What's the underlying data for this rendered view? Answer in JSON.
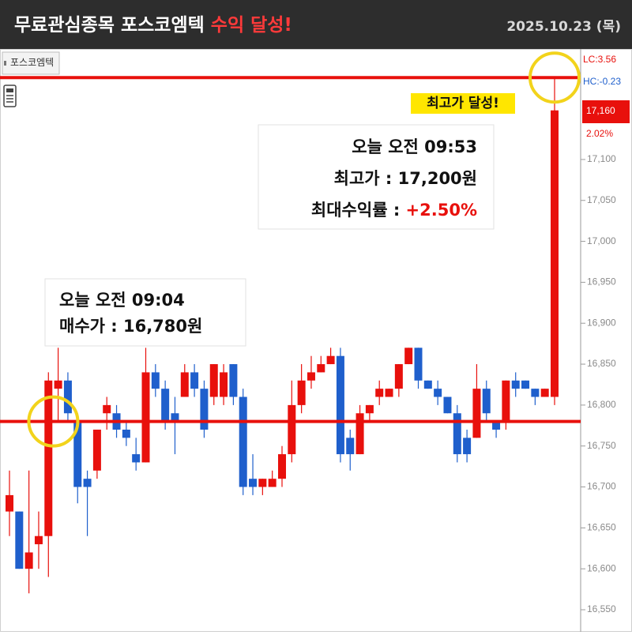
{
  "header": {
    "title": "무료관심종목 포스코엠텍",
    "title_highlight": "수익 달성!",
    "date": "2025.10.23 (목)"
  },
  "chart_data": {
    "type": "candlestick",
    "legend": "포스코엠텍",
    "open": [
      16670,
      16670,
      16600,
      16630,
      16640,
      16820,
      16830,
      16780,
      16710,
      16720,
      16790,
      16790,
      16770,
      16740,
      16730,
      16840,
      16820,
      16790,
      16810,
      16840,
      16820,
      16810,
      16810,
      16850,
      16810,
      16710,
      16700,
      16700,
      16710,
      16740,
      16800,
      16830,
      16840,
      16850,
      16860,
      16760,
      16740,
      16790,
      16810,
      16810,
      16820,
      16850,
      16870,
      16830,
      16820,
      16810,
      16790,
      16760,
      16760,
      16820,
      16780,
      16780,
      16830,
      16830,
      16820,
      16810,
      16810
    ],
    "high": [
      16720,
      16670,
      16720,
      16670,
      16840,
      16870,
      16840,
      16790,
      16720,
      16770,
      16810,
      16800,
      16780,
      16760,
      16870,
      16850,
      16830,
      16810,
      16850,
      16850,
      16830,
      16850,
      16850,
      16850,
      16820,
      16740,
      16710,
      16720,
      16750,
      16830,
      16850,
      16860,
      16860,
      16870,
      16870,
      16770,
      16800,
      16800,
      16830,
      16820,
      16850,
      16870,
      16870,
      16830,
      16830,
      16810,
      16800,
      16770,
      16850,
      16830,
      16780,
      16830,
      16840,
      16830,
      16820,
      16820,
      17200
    ],
    "low": [
      16640,
      16600,
      16570,
      16600,
      16590,
      16780,
      16780,
      16680,
      16640,
      16710,
      16770,
      16760,
      16750,
      16720,
      16730,
      16810,
      16770,
      16740,
      16810,
      16810,
      16760,
      16800,
      16800,
      16800,
      16690,
      16690,
      16690,
      16700,
      16700,
      16730,
      16790,
      16820,
      16840,
      16850,
      16730,
      16720,
      16740,
      16780,
      16800,
      16810,
      16810,
      16850,
      16820,
      16820,
      16800,
      16790,
      16730,
      16730,
      16760,
      16780,
      16760,
      16770,
      16810,
      16820,
      16800,
      16810,
      16800
    ],
    "close": [
      16690,
      16600,
      16620,
      16640,
      16830,
      16830,
      16790,
      16700,
      16700,
      16770,
      16800,
      16770,
      16760,
      16730,
      16840,
      16820,
      16780,
      16780,
      16840,
      16820,
      16770,
      16850,
      16840,
      16810,
      16700,
      16700,
      16710,
      16710,
      16740,
      16800,
      16830,
      16840,
      16850,
      16860,
      16740,
      16740,
      16790,
      16800,
      16820,
      16820,
      16850,
      16870,
      16830,
      16820,
      16810,
      16790,
      16740,
      16740,
      16820,
      16790,
      16770,
      16830,
      16820,
      16820,
      16810,
      16820,
      17160
    ],
    "up_color": "#e8100c",
    "down_color": "#1f5fcc",
    "ylim": [
      16523,
      17235
    ],
    "yticks": [
      {
        "value": 16550,
        "label": "16,550"
      },
      {
        "value": 16600,
        "label": "16,600"
      },
      {
        "value": 16650,
        "label": "16,650"
      },
      {
        "value": 16700,
        "label": "16,700"
      },
      {
        "value": 16750,
        "label": "16,750"
      },
      {
        "value": 16800,
        "label": "16,800"
      },
      {
        "value": 16850,
        "label": "16,850"
      },
      {
        "value": 16900,
        "label": "16,900"
      },
      {
        "value": 16950,
        "label": "16,950"
      },
      {
        "value": 17000,
        "label": "17,000"
      },
      {
        "value": 17050,
        "label": "17,050"
      },
      {
        "value": 17100,
        "label": "17,100"
      }
    ],
    "reference_lines": [
      {
        "value": 16780,
        "color": "#e8100c"
      },
      {
        "value": 17200,
        "color": "#e8100c"
      }
    ],
    "annotations": {
      "peak": {
        "time": "오늘 오전 09:53",
        "price": "최고가 : 17,200원",
        "return_label": "최대수익률 : ",
        "return_value": "+2.50%"
      },
      "buy": {
        "time": "오늘 오전 09:04",
        "price": "매수가 : 16,780원"
      },
      "badge": "최고가 달성!"
    },
    "status_labels": {
      "lc": "LC:3.56",
      "hc": "HC:-0.23",
      "price": "17,160",
      "change": "2.02%"
    }
  }
}
